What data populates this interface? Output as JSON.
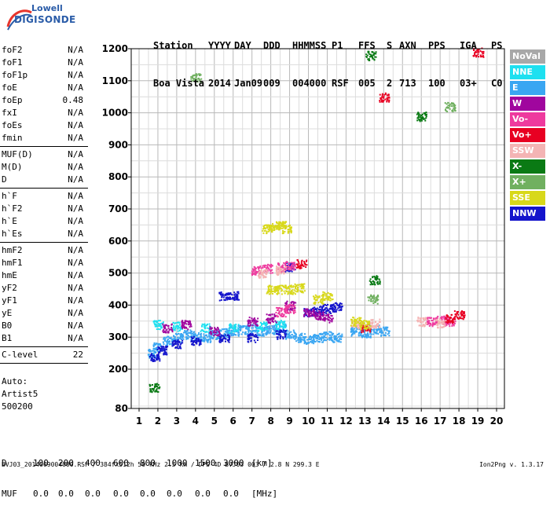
{
  "logo": {
    "top": "Lowell",
    "bottom": "DIGISONDE"
  },
  "header": {
    "row1": [
      "Station",
      "YYYY",
      "DAY",
      "DDD",
      "HHMMSS",
      "P1",
      "FFS",
      "S",
      "AXN",
      "PPS",
      "IGA",
      "PS"
    ],
    "row2": [
      "Boa Vista",
      "2014",
      "Jan09",
      "009",
      "004000",
      "RSF",
      "005",
      "2",
      "713",
      "100",
      "03+",
      "C0"
    ]
  },
  "params": {
    "group1": [
      {
        "name": "foF2",
        "value": "N/A"
      },
      {
        "name": "foF1",
        "value": "N/A"
      },
      {
        "name": "foF1p",
        "value": "N/A"
      },
      {
        "name": "foE",
        "value": "N/A"
      },
      {
        "name": "foEp",
        "value": "0.48"
      },
      {
        "name": "fxI",
        "value": "N/A"
      },
      {
        "name": "foEs",
        "value": "N/A"
      },
      {
        "name": "fmin",
        "value": "N/A"
      }
    ],
    "group2": [
      {
        "name": "MUF(D)",
        "value": "N/A"
      },
      {
        "name": "M(D)",
        "value": "N/A"
      },
      {
        "name": "D",
        "value": "N/A"
      }
    ],
    "group3": [
      {
        "name": "h`F",
        "value": "N/A"
      },
      {
        "name": "h`F2",
        "value": "N/A"
      },
      {
        "name": "h`E",
        "value": "N/A"
      },
      {
        "name": "h`Es",
        "value": "N/A"
      }
    ],
    "group4": [
      {
        "name": "hmF2",
        "value": "N/A"
      },
      {
        "name": "hmF1",
        "value": "N/A"
      },
      {
        "name": "hmE",
        "value": "N/A"
      },
      {
        "name": "yF2",
        "value": "N/A"
      },
      {
        "name": "yF1",
        "value": "N/A"
      },
      {
        "name": "yE",
        "value": "N/A"
      },
      {
        "name": "B0",
        "value": "N/A"
      },
      {
        "name": "B1",
        "value": "N/A"
      }
    ],
    "clevel": {
      "name": "C-level",
      "value": "22"
    }
  },
  "auto": {
    "line1": "Auto:",
    "line2": "Artist5",
    "line3": "500200"
  },
  "dtable": {
    "row1_label": "D",
    "row1_values": [
      "100",
      "200",
      "400",
      "600",
      "800",
      "1000",
      "1500",
      "3000",
      "[km]"
    ],
    "row2_label": "MUF",
    "row2_values": [
      "0.0",
      "0.0",
      "0.0",
      "0.0",
      "0.0",
      "0.0",
      "0.0",
      "0.0",
      "[MHz]"
    ]
  },
  "footer": {
    "left": "BVJ03_2014009004000.RSF / 384fx512h 50 kHz 2.5 km / DPS-4D BVJ03 003 / 2.8 N 299.3 E",
    "right": "Ion2Png v. 1.3.17"
  },
  "legend": [
    {
      "label": "NoVal",
      "color": "#a8a8a8"
    },
    {
      "label": "NNE",
      "color": "#1ee0f0"
    },
    {
      "label": "E",
      "color": "#3aa6f2"
    },
    {
      "label": "W",
      "color": "#a0069e"
    },
    {
      "label": "Vo-",
      "color": "#ee3a9e"
    },
    {
      "label": "Vo+",
      "color": "#e80022"
    },
    {
      "label": "SSW",
      "color": "#f4b4b4"
    },
    {
      "label": "X-",
      "color": "#0a7a14"
    },
    {
      "label": "X+",
      "color": "#70b060"
    },
    {
      "label": "SSE",
      "color": "#d8d81a"
    },
    {
      "label": "NNW",
      "color": "#1414cc"
    }
  ],
  "chart_data": {
    "type": "scatter",
    "xlim": [
      1,
      20
    ],
    "ylim": [
      80,
      1200
    ],
    "x_ticks": [
      1,
      2,
      3,
      4,
      5,
      6,
      7,
      8,
      9,
      10,
      11,
      12,
      13,
      14,
      15,
      16,
      17,
      18,
      19,
      20
    ],
    "y_ticks": [
      80,
      200,
      300,
      400,
      500,
      600,
      700,
      800,
      900,
      1000,
      1100,
      1200
    ],
    "grid": true,
    "legend_placement": "right",
    "series": [
      {
        "name": "E",
        "color": "#3aa6f2",
        "points": [
          [
            1.7,
            250
          ],
          [
            2.0,
            270
          ],
          [
            2.5,
            290
          ],
          [
            3.0,
            300
          ],
          [
            3.5,
            310
          ],
          [
            4.0,
            305
          ],
          [
            4.5,
            300
          ],
          [
            5.0,
            310
          ],
          [
            5.5,
            315
          ],
          [
            6.0,
            320
          ],
          [
            6.5,
            325
          ],
          [
            7.0,
            330
          ],
          [
            7.5,
            320
          ],
          [
            8.0,
            325
          ],
          [
            8.5,
            330
          ],
          [
            9.0,
            310
          ],
          [
            9.5,
            300
          ],
          [
            10.0,
            295
          ],
          [
            10.5,
            300
          ],
          [
            11.0,
            305
          ],
          [
            11.5,
            300
          ],
          [
            12.5,
            320
          ],
          [
            13.0,
            315
          ],
          [
            13.5,
            325
          ],
          [
            14.0,
            320
          ]
        ]
      },
      {
        "name": "NNE",
        "color": "#1ee0f0",
        "points": [
          [
            2.0,
            340
          ],
          [
            3.0,
            335
          ],
          [
            4.5,
            330
          ],
          [
            6.0,
            330
          ],
          [
            7.5,
            335
          ],
          [
            8.5,
            340
          ]
        ]
      },
      {
        "name": "NNW",
        "color": "#1414cc",
        "points": [
          [
            1.8,
            240
          ],
          [
            2.2,
            260
          ],
          [
            3.0,
            280
          ],
          [
            4.0,
            290
          ],
          [
            5.5,
            300
          ],
          [
            5.5,
            430
          ],
          [
            6.0,
            430
          ],
          [
            7.0,
            300
          ],
          [
            8.5,
            310
          ],
          [
            9.0,
            520
          ],
          [
            10.0,
            380
          ],
          [
            10.5,
            385
          ],
          [
            11.0,
            390
          ],
          [
            11.5,
            395
          ]
        ]
      },
      {
        "name": "W",
        "color": "#a0069e",
        "points": [
          [
            2.5,
            330
          ],
          [
            3.5,
            340
          ],
          [
            5.0,
            320
          ],
          [
            7.0,
            350
          ],
          [
            8.0,
            360
          ],
          [
            9.0,
            400
          ],
          [
            10.0,
            380
          ],
          [
            10.5,
            370
          ],
          [
            11.0,
            360
          ]
        ]
      },
      {
        "name": "Vo-",
        "color": "#ee3a9e",
        "points": [
          [
            7.2,
            510
          ],
          [
            7.8,
            515
          ],
          [
            8.5,
            520
          ],
          [
            9.0,
            525
          ],
          [
            8.5,
            380
          ],
          [
            9.0,
            390
          ],
          [
            16.5,
            350
          ],
          [
            17.0,
            355
          ],
          [
            17.5,
            350
          ]
        ]
      },
      {
        "name": "Vo+",
        "color": "#e80022",
        "points": [
          [
            9.6,
            530
          ],
          [
            13.0,
            330
          ],
          [
            17.5,
            360
          ],
          [
            18.0,
            370
          ],
          [
            19.0,
            1190
          ],
          [
            14.0,
            1050
          ]
        ]
      },
      {
        "name": "SSW",
        "color": "#f4b4b4",
        "points": [
          [
            7.5,
            500
          ],
          [
            8.5,
            510
          ],
          [
            12.5,
            340
          ],
          [
            13.5,
            345
          ],
          [
            16.0,
            350
          ],
          [
            17.0,
            345
          ]
        ]
      },
      {
        "name": "X-",
        "color": "#0a7a14",
        "points": [
          [
            1.8,
            145
          ],
          [
            13.5,
            480
          ],
          [
            13.3,
            1180
          ],
          [
            16.0,
            990
          ]
        ]
      },
      {
        "name": "X+",
        "color": "#70b060",
        "points": [
          [
            4.0,
            1110
          ],
          [
            13.4,
            420
          ],
          [
            17.5,
            1020
          ]
        ]
      },
      {
        "name": "SSE",
        "color": "#d8d81a",
        "points": [
          [
            7.8,
            640
          ],
          [
            8.2,
            645
          ],
          [
            8.5,
            650
          ],
          [
            8.8,
            640
          ],
          [
            8.0,
            450
          ],
          [
            8.5,
            450
          ],
          [
            9.0,
            450
          ],
          [
            9.5,
            455
          ],
          [
            10.5,
            420
          ],
          [
            11.0,
            430
          ],
          [
            12.5,
            350
          ],
          [
            13.0,
            340
          ]
        ]
      }
    ]
  }
}
